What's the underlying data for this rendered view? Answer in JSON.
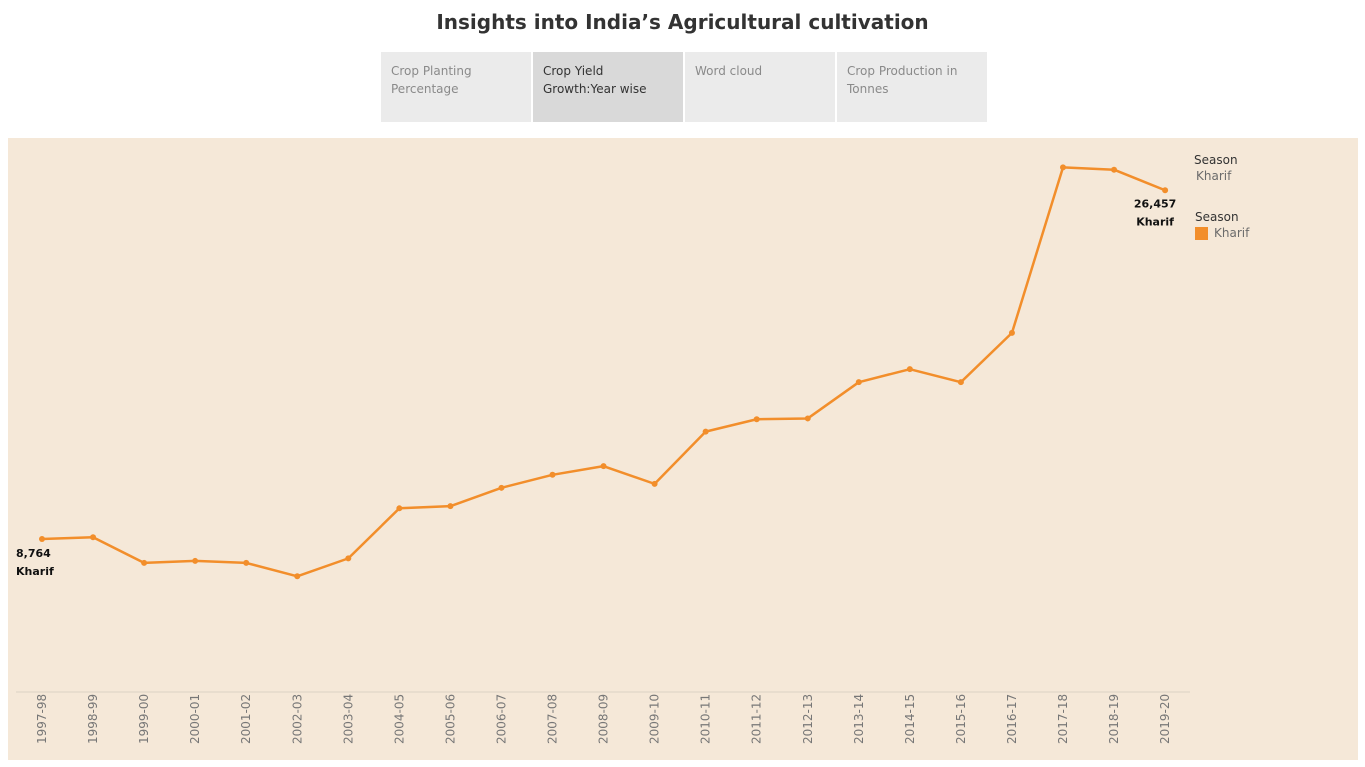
{
  "page": {
    "title": "Insights into India’s Agricultural cultivation"
  },
  "tabs": [
    {
      "line1": "Crop Planting",
      "line2": "Percentage",
      "active": false
    },
    {
      "line1": "Crop Yield",
      "line2": "Growth:Year wise",
      "active": true
    },
    {
      "line1": "Word cloud",
      "line2": "",
      "active": false
    },
    {
      "line1": "Crop Production in",
      "line2": "Tonnes",
      "active": false
    }
  ],
  "legend": {
    "filter_title": "Season",
    "filter_value": "Kharif",
    "color_title": "Season",
    "color_item": "Kharif"
  },
  "colors": {
    "series": "#f28e2b",
    "panel_bg": "#f5e8d8"
  },
  "chart_data": {
    "type": "line",
    "title": "",
    "xlabel": "",
    "ylabel": "",
    "grid": false,
    "legend_placement": "right",
    "categories": [
      "1997-98",
      "1998-99",
      "1999-00",
      "2000-01",
      "2001-02",
      "2002-03",
      "2003-04",
      "2004-05",
      "2005-06",
      "2006-07",
      "2007-08",
      "2008-09",
      "2009-10",
      "2010-11",
      "2011-12",
      "2012-13",
      "2013-14",
      "2014-15",
      "2015-16",
      "2016-17",
      "2017-18",
      "2018-19",
      "2019-20"
    ],
    "series": [
      {
        "name": "Kharif",
        "values": [
          8764,
          8850,
          7550,
          7650,
          7550,
          6870,
          7780,
          10320,
          10430,
          11360,
          12020,
          12460,
          11560,
          14210,
          14840,
          14880,
          16720,
          17380,
          16720,
          19220,
          27620,
          27500,
          26457
        ]
      }
    ],
    "ylim": [
      1000,
      28500
    ],
    "point_labels": [
      {
        "index": 0,
        "value": "8,764",
        "series": "Kharif"
      },
      {
        "index": 22,
        "value": "26,457",
        "series": "Kharif"
      }
    ]
  }
}
